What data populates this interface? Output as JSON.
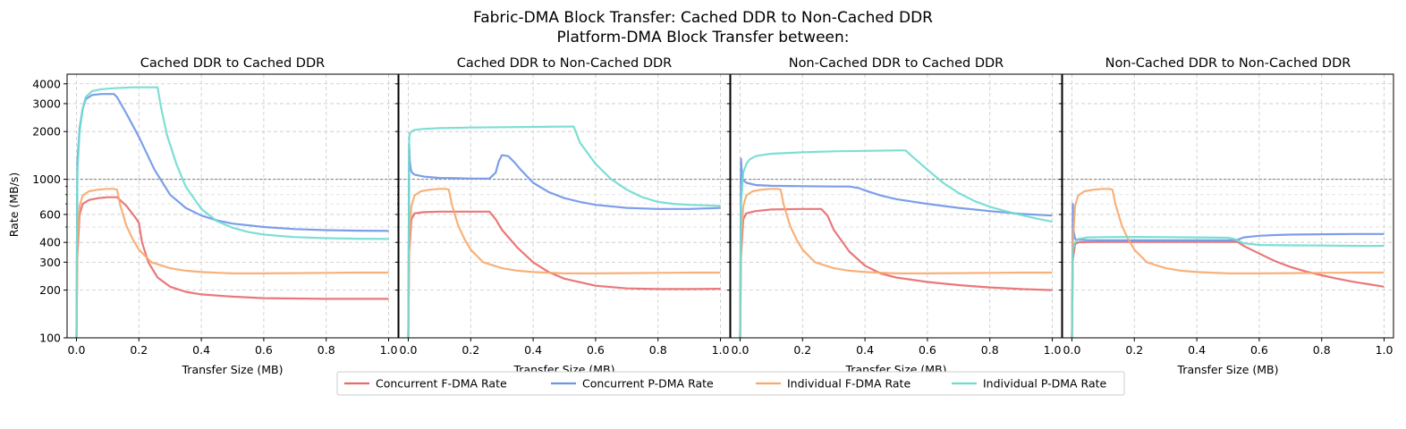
{
  "figure": {
    "title_line1": "Fabric-DMA Block Transfer: Cached DDR to Non-Cached DDR",
    "title_line2": "Platform-DMA Block Transfer between:"
  },
  "chart_data": {
    "type": "line",
    "yscale": "log",
    "shared_y": true,
    "ylabel": "Rate (MB/s)",
    "xlabel": "Transfer Size (MB)",
    "xlim": [
      -0.03,
      1.03
    ],
    "ylim": [
      100,
      4600
    ],
    "xticks": [
      0.0,
      0.2,
      0.4,
      0.6,
      0.8,
      1.0
    ],
    "xtick_labels": [
      "0.0",
      "0.2",
      "0.4",
      "0.6",
      "0.8",
      "1.0"
    ],
    "yticks": [
      100,
      200,
      300,
      400,
      600,
      1000,
      2000,
      3000,
      4000
    ],
    "ytick_labels": [
      "100",
      "200",
      "300",
      "400",
      "600",
      "1000",
      "2000",
      "3000",
      "4000"
    ],
    "reference_line": 1000,
    "grid": true,
    "legend_position": "bottom-center",
    "series_meta": [
      {
        "name": "Concurrent F-DMA Rate",
        "color": "#e8696b"
      },
      {
        "name": "Concurrent P-DMA Rate",
        "color": "#6e93e8"
      },
      {
        "name": "Individual F-DMA Rate",
        "color": "#f7a86c"
      },
      {
        "name": "Individual P-DMA Rate",
        "color": "#6edcd0"
      }
    ],
    "panels": [
      {
        "title": "Cached DDR to Cached DDR",
        "series": [
          {
            "name": "Concurrent F-DMA Rate",
            "x": [
              0,
              0.003,
              0.01,
              0.02,
              0.04,
              0.07,
              0.1,
              0.13,
              0.16,
              0.19,
              0.2,
              0.21,
              0.23,
              0.26,
              0.3,
              0.35,
              0.4,
              0.5,
              0.6,
              0.7,
              0.8,
              0.9,
              1.0
            ],
            "y": [
              100,
              330,
              600,
              700,
              740,
              760,
              770,
              770,
              680,
              570,
              530,
              400,
              300,
              240,
              210,
              195,
              188,
              182,
              178,
              177,
              176,
              176,
              176
            ]
          },
          {
            "name": "Concurrent P-DMA Rate",
            "x": [
              0,
              0.003,
              0.01,
              0.02,
              0.03,
              0.05,
              0.08,
              0.12,
              0.13,
              0.16,
              0.2,
              0.25,
              0.3,
              0.35,
              0.4,
              0.45,
              0.5,
              0.6,
              0.7,
              0.8,
              0.9,
              1.0
            ],
            "y": [
              100,
              1300,
              2100,
              2800,
              3200,
              3400,
              3450,
              3450,
              3300,
              2600,
              1850,
              1150,
              800,
              660,
              590,
              550,
              525,
              500,
              485,
              478,
              474,
              472
            ]
          },
          {
            "name": "Individual F-DMA Rate",
            "x": [
              0,
              0.003,
              0.01,
              0.02,
              0.04,
              0.07,
              0.1,
              0.12,
              0.13,
              0.14,
              0.16,
              0.18,
              0.2,
              0.24,
              0.3,
              0.35,
              0.4,
              0.5,
              0.6,
              0.7,
              0.8,
              0.9,
              1.0
            ],
            "y": [
              100,
              400,
              680,
              790,
              840,
              860,
              870,
              870,
              860,
              690,
              510,
              420,
              360,
              300,
              275,
              265,
              260,
              255,
              255,
              256,
              257,
              258,
              258
            ]
          },
          {
            "name": "Individual P-DMA Rate",
            "x": [
              0,
              0.003,
              0.01,
              0.02,
              0.03,
              0.05,
              0.08,
              0.12,
              0.18,
              0.26,
              0.27,
              0.29,
              0.32,
              0.35,
              0.4,
              0.45,
              0.5,
              0.55,
              0.6,
              0.7,
              0.8,
              0.9,
              1.0
            ],
            "y": [
              100,
              1100,
              2000,
              2800,
              3300,
              3600,
              3700,
              3750,
              3800,
              3800,
              2900,
              1900,
              1250,
              900,
              650,
              545,
              495,
              465,
              448,
              432,
              425,
              422,
              420
            ]
          }
        ]
      },
      {
        "title": "Cached DDR to Non-Cached DDR",
        "series": [
          {
            "name": "Concurrent F-DMA Rate",
            "x": [
              0,
              0.003,
              0.01,
              0.02,
              0.05,
              0.1,
              0.2,
              0.26,
              0.28,
              0.3,
              0.35,
              0.4,
              0.45,
              0.5,
              0.6,
              0.7,
              0.8,
              0.9,
              1.0
            ],
            "y": [
              100,
              350,
              560,
              610,
              620,
              625,
              625,
              625,
              560,
              480,
              370,
              300,
              260,
              236,
              213,
              205,
              203,
              203,
              204
            ]
          },
          {
            "name": "Concurrent P-DMA Rate",
            "x": [
              0,
              0.003,
              0.005,
              0.008,
              0.012,
              0.02,
              0.05,
              0.1,
              0.15,
              0.2,
              0.26,
              0.28,
              0.29,
              0.3,
              0.32,
              0.34,
              0.36,
              0.4,
              0.45,
              0.5,
              0.55,
              0.6,
              0.7,
              0.8,
              0.9,
              1.0
            ],
            "y": [
              100,
              1650,
              1300,
              1150,
              1100,
              1070,
              1040,
              1020,
              1015,
              1010,
              1010,
              1100,
              1300,
              1420,
              1400,
              1280,
              1150,
              950,
              830,
              760,
              720,
              690,
              660,
              650,
              650,
              660
            ]
          },
          {
            "name": "Individual F-DMA Rate",
            "x": [
              0,
              0.003,
              0.01,
              0.02,
              0.04,
              0.07,
              0.1,
              0.12,
              0.13,
              0.14,
              0.16,
              0.18,
              0.2,
              0.24,
              0.3,
              0.35,
              0.4,
              0.5,
              0.6,
              0.7,
              0.8,
              0.9,
              1.0
            ],
            "y": [
              100,
              400,
              680,
              790,
              840,
              860,
              870,
              870,
              860,
              690,
              510,
              420,
              360,
              300,
              275,
              265,
              260,
              255,
              255,
              256,
              257,
              258,
              258
            ]
          },
          {
            "name": "Individual P-DMA Rate",
            "x": [
              0,
              0.003,
              0.005,
              0.01,
              0.02,
              0.05,
              0.1,
              0.2,
              0.3,
              0.4,
              0.5,
              0.53,
              0.55,
              0.6,
              0.65,
              0.7,
              0.75,
              0.8,
              0.85,
              0.9,
              1.0
            ],
            "y": [
              100,
              1800,
              1950,
              2000,
              2050,
              2080,
              2100,
              2120,
              2130,
              2140,
              2150,
              2150,
              1700,
              1250,
              1000,
              860,
              770,
              720,
              700,
              690,
              680
            ]
          }
        ]
      },
      {
        "title": "Non-Cached DDR to Cached DDR",
        "series": [
          {
            "name": "Concurrent F-DMA Rate",
            "x": [
              0,
              0.003,
              0.01,
              0.02,
              0.05,
              0.1,
              0.2,
              0.26,
              0.28,
              0.3,
              0.35,
              0.4,
              0.45,
              0.5,
              0.6,
              0.7,
              0.8,
              0.9,
              1.0
            ],
            "y": [
              100,
              330,
              560,
              610,
              630,
              645,
              650,
              650,
              590,
              480,
              350,
              285,
              255,
              240,
              225,
              215,
              208,
              203,
              200
            ]
          },
          {
            "name": "Concurrent P-DMA Rate",
            "x": [
              0,
              0.003,
              0.005,
              0.008,
              0.012,
              0.02,
              0.05,
              0.1,
              0.2,
              0.3,
              0.35,
              0.38,
              0.4,
              0.45,
              0.5,
              0.6,
              0.7,
              0.8,
              0.9,
              1.0
            ],
            "y": [
              100,
              1350,
              1150,
              1000,
              980,
              950,
              920,
              910,
              905,
              900,
              900,
              880,
              850,
              790,
              750,
              700,
              660,
              630,
              605,
              590
            ]
          },
          {
            "name": "Individual F-DMA Rate",
            "x": [
              0,
              0.003,
              0.01,
              0.02,
              0.04,
              0.07,
              0.1,
              0.12,
              0.13,
              0.14,
              0.16,
              0.18,
              0.2,
              0.24,
              0.3,
              0.35,
              0.4,
              0.5,
              0.6,
              0.7,
              0.8,
              0.9,
              1.0
            ],
            "y": [
              100,
              400,
              680,
              790,
              840,
              860,
              870,
              870,
              860,
              690,
              510,
              420,
              360,
              300,
              275,
              265,
              260,
              255,
              255,
              256,
              257,
              258,
              258
            ]
          },
          {
            "name": "Individual P-DMA Rate",
            "x": [
              0,
              0.003,
              0.01,
              0.02,
              0.03,
              0.05,
              0.08,
              0.1,
              0.2,
              0.3,
              0.4,
              0.5,
              0.53,
              0.55,
              0.6,
              0.65,
              0.7,
              0.75,
              0.8,
              0.85,
              0.9,
              0.95,
              1.0
            ],
            "y": [
              100,
              700,
              1100,
              1250,
              1330,
              1400,
              1430,
              1450,
              1480,
              1500,
              1510,
              1520,
              1520,
              1400,
              1150,
              950,
              820,
              730,
              670,
              630,
              595,
              565,
              540
            ]
          }
        ]
      },
      {
        "title": "Non-Cached DDR to Non-Cached DDR",
        "series": [
          {
            "name": "Concurrent F-DMA Rate",
            "x": [
              0,
              0.003,
              0.01,
              0.02,
              0.05,
              0.1,
              0.2,
              0.3,
              0.4,
              0.5,
              0.53,
              0.55,
              0.6,
              0.65,
              0.7,
              0.75,
              0.8,
              0.85,
              0.9,
              0.95,
              1.0
            ],
            "y": [
              100,
              310,
              390,
              400,
              402,
              403,
              403,
              403,
              403,
              403,
              403,
              380,
              340,
              305,
              280,
              262,
              248,
              236,
              226,
              218,
              210
            ]
          },
          {
            "name": "Concurrent P-DMA Rate",
            "x": [
              0,
              0.003,
              0.005,
              0.01,
              0.02,
              0.05,
              0.1,
              0.2,
              0.3,
              0.4,
              0.5,
              0.53,
              0.55,
              0.6,
              0.65,
              0.7,
              0.8,
              0.9,
              1.0
            ],
            "y": [
              100,
              700,
              480,
              420,
              415,
              413,
              412,
              412,
              412,
              412,
              412,
              415,
              430,
              440,
              445,
              448,
              450,
              452,
              452
            ]
          },
          {
            "name": "Individual F-DMA Rate",
            "x": [
              0,
              0.003,
              0.01,
              0.02,
              0.04,
              0.07,
              0.1,
              0.12,
              0.13,
              0.14,
              0.16,
              0.18,
              0.2,
              0.24,
              0.3,
              0.35,
              0.4,
              0.5,
              0.6,
              0.7,
              0.8,
              0.9,
              1.0
            ],
            "y": [
              100,
              400,
              680,
              790,
              840,
              860,
              870,
              870,
              860,
              690,
              510,
              420,
              360,
              300,
              275,
              265,
              260,
              255,
              255,
              256,
              257,
              258,
              258
            ]
          },
          {
            "name": "Individual P-DMA Rate",
            "x": [
              0,
              0.003,
              0.01,
              0.02,
              0.05,
              0.1,
              0.2,
              0.3,
              0.4,
              0.5,
              0.52,
              0.55,
              0.6,
              0.7,
              0.8,
              0.9,
              1.0
            ],
            "y": [
              100,
              360,
              400,
              420,
              430,
              432,
              433,
              432,
              430,
              428,
              420,
              395,
              385,
              383,
              382,
              380,
              380
            ]
          }
        ]
      }
    ]
  }
}
